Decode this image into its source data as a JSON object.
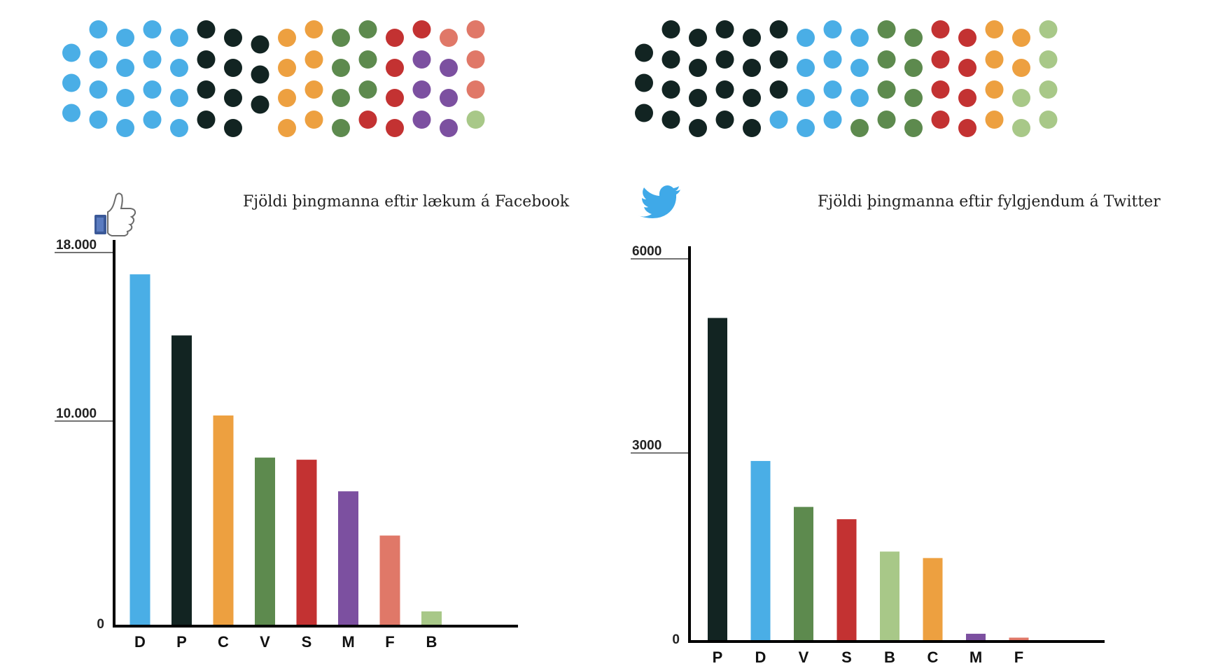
{
  "colors": {
    "D": "#4aaee6",
    "P": "#122422",
    "C": "#eda040",
    "V": "#5d8a4e",
    "S": "#c33232",
    "M": "#7c50a0",
    "F": "#e07868",
    "B": "#a8c888"
  },
  "icons": {
    "left": "facebook-like-icon",
    "right": "twitter-bird-icon"
  },
  "chart_data": [
    {
      "type": "bar",
      "title": "Fjöldi þingmanna eftir lækum á Facebook",
      "categories": [
        "D",
        "P",
        "C",
        "V",
        "S",
        "M",
        "F",
        "B"
      ],
      "values": [
        16700,
        13800,
        10000,
        8000,
        7900,
        6400,
        4300,
        700
      ],
      "ylim": [
        0,
        18000
      ],
      "ticks": [
        {
          "value": 0,
          "label": "0"
        },
        {
          "value": 10000,
          "label": "10.000"
        },
        {
          "value": 18000,
          "label": "18.000"
        }
      ],
      "xlabel": "",
      "ylabel": "",
      "grid": false
    },
    {
      "type": "bar",
      "title": "Fjöldi þingmanna eftir fylgjendum á Twitter",
      "categories": [
        "P",
        "D",
        "V",
        "S",
        "B",
        "C",
        "M",
        "F"
      ],
      "values": [
        5000,
        2790,
        2080,
        1890,
        1390,
        1290,
        120,
        60
      ],
      "ylim": [
        0,
        6000
      ],
      "ticks": [
        {
          "value": 0,
          "label": "0"
        },
        {
          "value": 3000,
          "label": "3000"
        },
        {
          "value": 6000,
          "label": "6000"
        }
      ],
      "xlabel": "",
      "ylabel": "",
      "grid": false
    }
  ],
  "hemicycles": [
    {
      "type": "dot-grid",
      "columns": [
        [
          "D",
          "D",
          "D"
        ],
        [
          "D",
          "D",
          "D",
          "D"
        ],
        [
          "D",
          "D",
          "D",
          "D"
        ],
        [
          "D",
          "D",
          "D",
          "D"
        ],
        [
          "D",
          "D",
          "D",
          "D"
        ],
        [
          "P",
          "P",
          "P",
          "P"
        ],
        [
          "P",
          "P",
          "P",
          "P"
        ],
        [
          "P",
          "P",
          "P"
        ],
        [
          "C",
          "C",
          "C",
          "C"
        ],
        [
          "C",
          "C",
          "C",
          "C"
        ],
        [
          "V",
          "V",
          "V",
          "V"
        ],
        [
          "V",
          "V",
          "V",
          "S"
        ],
        [
          "S",
          "S",
          "S",
          "S"
        ],
        [
          "S",
          "M",
          "M",
          "M"
        ],
        [
          "F",
          "M",
          "M",
          "M"
        ],
        [
          "F",
          "F",
          "F",
          "B"
        ]
      ]
    },
    {
      "type": "dot-grid",
      "columns": [
        [
          "P",
          "P",
          "P"
        ],
        [
          "P",
          "P",
          "P",
          "P"
        ],
        [
          "P",
          "P",
          "P",
          "P"
        ],
        [
          "P",
          "P",
          "P",
          "P"
        ],
        [
          "P",
          "P",
          "P",
          "P"
        ],
        [
          "P",
          "P",
          "P",
          "D"
        ],
        [
          "D",
          "D",
          "D",
          "D"
        ],
        [
          "D",
          "D",
          "D",
          "D"
        ],
        [
          "D",
          "D",
          "D",
          "V"
        ],
        [
          "V",
          "V",
          "V",
          "V"
        ],
        [
          "V",
          "V",
          "V",
          "V"
        ],
        [
          "S",
          "S",
          "S",
          "S"
        ],
        [
          "S",
          "S",
          "S",
          "S"
        ],
        [
          "C",
          "C",
          "C",
          "C"
        ],
        [
          "C",
          "C",
          "B",
          "B"
        ],
        [
          "B",
          "B",
          "B",
          "B"
        ]
      ]
    }
  ]
}
